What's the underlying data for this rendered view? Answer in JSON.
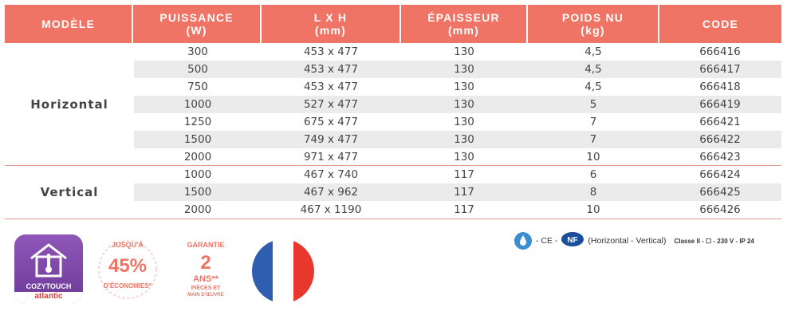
{
  "headers": [
    {
      "line1": "MODÈLE",
      "line2": ""
    },
    {
      "line1": "PUISSANCE",
      "line2": "(W)"
    },
    {
      "line1": "L X H",
      "line2": "(mm)"
    },
    {
      "line1": "ÉPAISSEUR",
      "line2": "(mm)"
    },
    {
      "line1": "POIDS NU",
      "line2": "(kg)"
    },
    {
      "line1": "CODE",
      "line2": ""
    }
  ],
  "groups": [
    {
      "model": "Horizontal",
      "rows": [
        {
          "power": "300",
          "size": "453 x 477",
          "thickness": "130",
          "weight": "4,5",
          "code": "666416"
        },
        {
          "power": "500",
          "size": "453 x 477",
          "thickness": "130",
          "weight": "4,5",
          "code": "666417"
        },
        {
          "power": "750",
          "size": "453 x 477",
          "thickness": "130",
          "weight": "4,5",
          "code": "666418"
        },
        {
          "power": "1000",
          "size": "527 x 477",
          "thickness": "130",
          "weight": "5",
          "code": "666419"
        },
        {
          "power": "1250",
          "size": "675 x 477",
          "thickness": "130",
          "weight": "7",
          "code": "666421"
        },
        {
          "power": "1500",
          "size": "749 x 477",
          "thickness": "130",
          "weight": "7",
          "code": "666422"
        },
        {
          "power": "2000",
          "size": "971 x 477",
          "thickness": "130",
          "weight": "10",
          "code": "666423"
        }
      ]
    },
    {
      "model": "Vertical",
      "rows": [
        {
          "power": "1000",
          "size": "467 x 740",
          "thickness": "117",
          "weight": "6",
          "code": "666424"
        },
        {
          "power": "1500",
          "size": "467 x 962",
          "thickness": "117",
          "weight": "8",
          "code": "666425"
        },
        {
          "power": "2000",
          "size": "467 x 1190",
          "thickness": "117",
          "weight": "10",
          "code": "666426"
        }
      ]
    }
  ],
  "badges": {
    "cozytouch_label": "COZYTOUCH",
    "brand": "atlantic",
    "econ_top": "JUSQU'À",
    "econ_value": "45%",
    "econ_bottom": "D'ÉCONOMIES*",
    "warranty_top": "GARANTIE",
    "warranty_value": "2",
    "warranty_unit": "ANS**",
    "warranty_bottom1": "PIÈCES ET",
    "warranty_bottom2": "MAIN D'ŒUVRE"
  },
  "certifications": {
    "ce": "- CE -",
    "nf": "NF",
    "models": "(Horizontal - Vertical)",
    "class_text": "Classe II - ☐ - 230 V - IP 24"
  },
  "colors": {
    "header": "#ef7465",
    "accent": "#ef7465",
    "flag_blue": "#2f5db0",
    "flag_red": "#e8382e",
    "cozy_purple": "#7b45a6"
  }
}
